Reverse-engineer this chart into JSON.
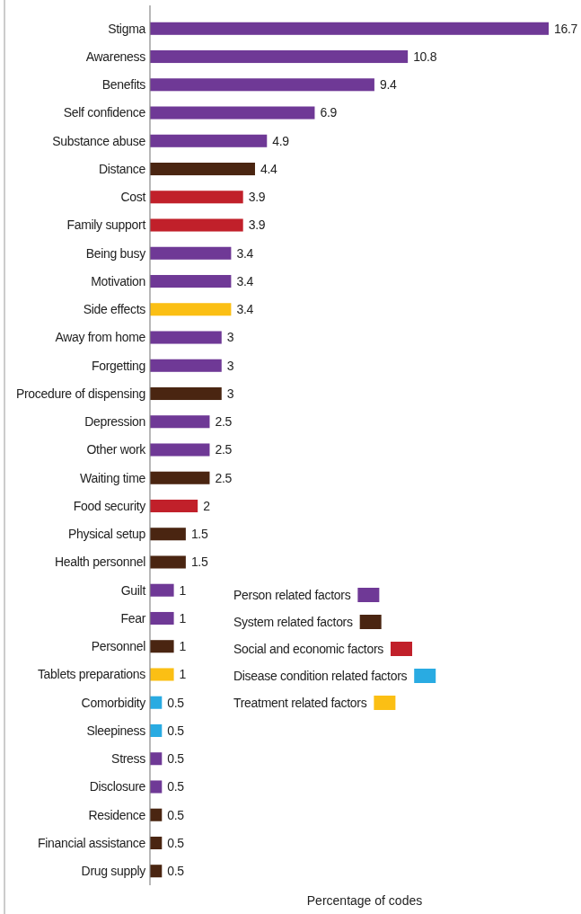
{
  "chart_data": {
    "type": "bar",
    "orientation": "horizontal",
    "data_labels": true,
    "legend": "right",
    "xlabel": "Percentage of codes",
    "categories": [
      "Stigma",
      "Awareness",
      "Benefits",
      "Self confidence",
      "Substance abuse",
      "Distance",
      "Cost",
      "Family support",
      "Being busy",
      "Motivation",
      "Side effects",
      "Away from home",
      "Forgetting",
      "Procedure of dispensing",
      "Depression",
      "Other work",
      "Waiting time",
      "Food security",
      "Physical setup",
      "Health personnel",
      "Guilt",
      "Fear",
      "Personnel",
      "Tablets preparations",
      "Comorbidity",
      "Sleepiness",
      "Stress",
      "Disclosure",
      "Residence",
      "Financial assistance",
      "Drug supply"
    ],
    "series": [
      {
        "name": "Person related factors",
        "color": "#6f3996",
        "values": [
          16.7,
          10.8,
          9.4,
          6.9,
          4.9,
          null,
          null,
          null,
          3.4,
          3.4,
          null,
          3,
          3,
          null,
          2.5,
          2.5,
          null,
          null,
          null,
          null,
          1,
          1,
          null,
          null,
          null,
          null,
          0.5,
          0.5,
          null,
          null,
          null
        ]
      },
      {
        "name": "System related factors",
        "color": "#4a2511",
        "values": [
          null,
          null,
          null,
          null,
          null,
          4.4,
          null,
          null,
          null,
          null,
          null,
          null,
          null,
          3,
          null,
          null,
          2.5,
          null,
          1.5,
          1.5,
          null,
          null,
          1,
          null,
          null,
          null,
          null,
          null,
          0.5,
          0.5,
          0.5
        ]
      },
      {
        "name": "Social and economic factors",
        "color": "#c1202a",
        "values": [
          null,
          null,
          null,
          null,
          null,
          null,
          3.9,
          3.9,
          null,
          null,
          null,
          null,
          null,
          null,
          null,
          null,
          null,
          2,
          null,
          null,
          null,
          null,
          null,
          null,
          null,
          null,
          null,
          null,
          null,
          null,
          null
        ]
      },
      {
        "name": "Disease condition related factors",
        "color": "#29abe2",
        "values": [
          null,
          null,
          null,
          null,
          null,
          null,
          null,
          null,
          null,
          null,
          null,
          null,
          null,
          null,
          null,
          null,
          null,
          null,
          null,
          null,
          null,
          null,
          null,
          null,
          0.5,
          0.5,
          null,
          null,
          null,
          null,
          null
        ]
      },
      {
        "name": "Treatment related factors",
        "color": "#fbbf14",
        "values": [
          null,
          null,
          null,
          null,
          null,
          null,
          null,
          null,
          null,
          null,
          3.4,
          null,
          null,
          null,
          null,
          null,
          null,
          null,
          null,
          null,
          null,
          null,
          null,
          1,
          null,
          null,
          null,
          null,
          null,
          null,
          null
        ]
      }
    ]
  }
}
